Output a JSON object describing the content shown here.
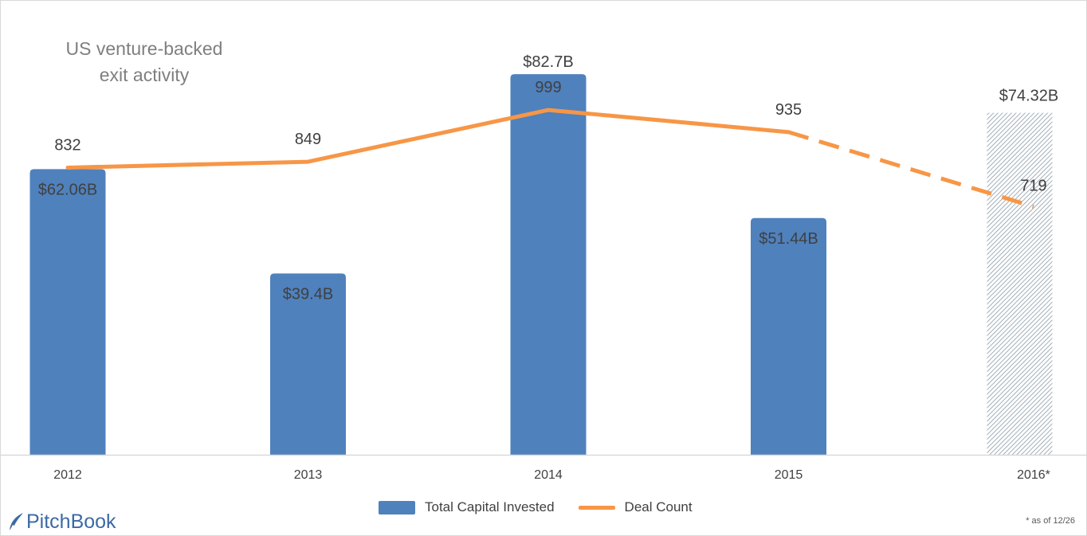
{
  "title": [
    "US venture-backed",
    "exit activity"
  ],
  "chart_data": {
    "type": "bar",
    "categories": [
      "2012",
      "2013",
      "2014",
      "2015",
      "2016*"
    ],
    "series": [
      {
        "name": "Total Capital Invested",
        "kind": "bar",
        "values": [
          62.06,
          39.4,
          82.7,
          51.44,
          74.32
        ],
        "labels": [
          "$62.06B",
          "$39.4B",
          "$82.7B",
          "$51.44B",
          "$74.32B"
        ],
        "color": "#4f81bd",
        "partial_last": true
      },
      {
        "name": "Deal Count",
        "kind": "line",
        "values": [
          832,
          849,
          999,
          935,
          719
        ],
        "labels": [
          "832",
          "849",
          "999",
          "935",
          "719"
        ],
        "color": "#f79646",
        "dashed_last_segment": true
      }
    ],
    "ylim_bar": [
      0,
      90
    ],
    "ylim_line": [
      0,
      1200
    ],
    "grid": false,
    "legend_position": "bottom"
  },
  "colors": {
    "bar": "#4f81bd",
    "line": "#f79646",
    "hatch": "#8a9aa7"
  },
  "footnote": "* as of 12/26",
  "logo_text": "PitchBook"
}
